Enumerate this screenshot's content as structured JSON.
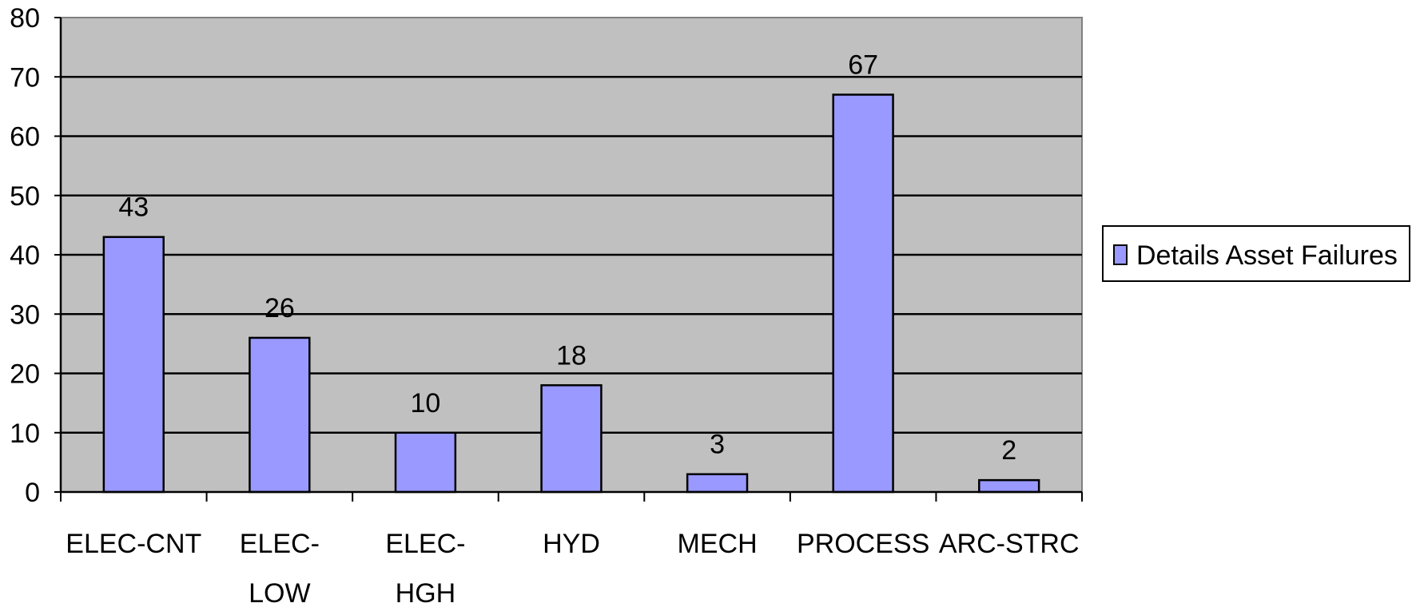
{
  "chart_data": {
    "type": "bar",
    "categories": [
      [
        "ELEC-CNT"
      ],
      [
        "ELEC-",
        "LOW"
      ],
      [
        "ELEC-",
        "HGH"
      ],
      [
        "HYD"
      ],
      [
        "MECH"
      ],
      [
        "PROCESS"
      ],
      [
        "ARC-STRC"
      ]
    ],
    "series": [
      {
        "name": "Details Asset Failures",
        "values": [
          43,
          26,
          10,
          18,
          3,
          67,
          2
        ]
      }
    ],
    "ylim": [
      0,
      80
    ],
    "yticks": [
      0,
      10,
      20,
      30,
      40,
      50,
      60,
      70,
      80
    ],
    "grid": true,
    "legend_position": "right",
    "data_labels": true
  },
  "colors": {
    "plot_background": "#c0c0c0",
    "bar_fill": "#9999ff",
    "bar_stroke": "#000000",
    "gridline": "#000000",
    "axis": "#808080"
  }
}
